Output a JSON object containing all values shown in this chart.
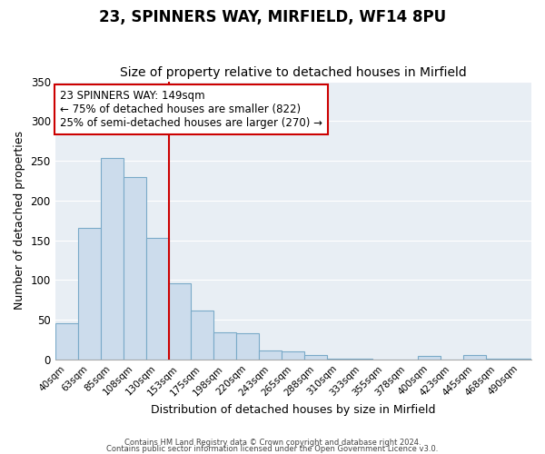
{
  "title": "23, SPINNERS WAY, MIRFIELD, WF14 8PU",
  "subtitle": "Size of property relative to detached houses in Mirfield",
  "xlabel": "Distribution of detached houses by size in Mirfield",
  "ylabel": "Number of detached properties",
  "bar_labels": [
    "40sqm",
    "63sqm",
    "85sqm",
    "108sqm",
    "130sqm",
    "153sqm",
    "175sqm",
    "198sqm",
    "220sqm",
    "243sqm",
    "265sqm",
    "288sqm",
    "310sqm",
    "333sqm",
    "355sqm",
    "378sqm",
    "400sqm",
    "423sqm",
    "445sqm",
    "468sqm",
    "490sqm"
  ],
  "bar_values": [
    46,
    165,
    254,
    229,
    153,
    96,
    61,
    34,
    33,
    11,
    10,
    5,
    1,
    1,
    0,
    0,
    4,
    0,
    5,
    1,
    1
  ],
  "bar_color": "#ccdcec",
  "bar_edge_color": "#7aaac8",
  "vline_x_index": 5,
  "vline_color": "#cc0000",
  "ylim": [
    0,
    350
  ],
  "yticks": [
    0,
    50,
    100,
    150,
    200,
    250,
    300,
    350
  ],
  "annotation_text": "23 SPINNERS WAY: 149sqm\n← 75% of detached houses are smaller (822)\n25% of semi-detached houses are larger (270) →",
  "annotation_box_color": "#ffffff",
  "annotation_box_edge": "#cc0000",
  "footer1": "Contains HM Land Registry data © Crown copyright and database right 2024.",
  "footer2": "Contains public sector information licensed under the Open Government Licence v3.0.",
  "title_fontsize": 12,
  "subtitle_fontsize": 10,
  "ax_background": "#e8eef4",
  "fig_background": "#ffffff",
  "grid_color": "#ffffff"
}
